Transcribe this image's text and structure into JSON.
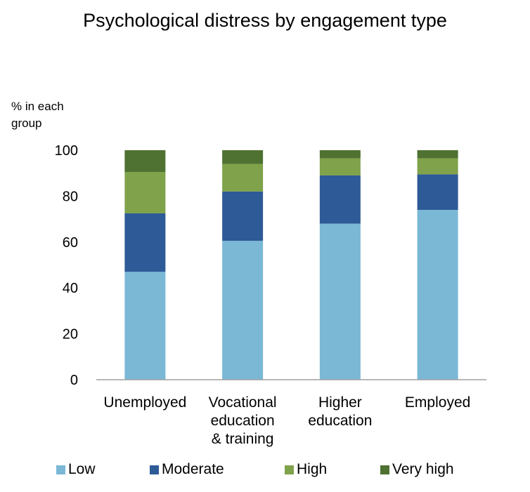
{
  "chart_data": {
    "type": "bar",
    "stacked": true,
    "title": "Psychological distress by engagement type",
    "ylabel": "% in each\ngroup",
    "xlabel": "",
    "ylim": [
      0,
      100
    ],
    "yticks": [
      0,
      20,
      40,
      60,
      80,
      100
    ],
    "grid": false,
    "legend_position": "bottom",
    "categories": [
      "Unemployed",
      "Vocational\neducation\n& training",
      "Higher\neducation",
      "Employed"
    ],
    "series": [
      {
        "name": "Low",
        "color": "#7ab8d6",
        "values": [
          47,
          60.5,
          68,
          74
        ]
      },
      {
        "name": "Moderate",
        "color": "#2e5a97",
        "values": [
          25.5,
          21.5,
          21,
          15.5
        ]
      },
      {
        "name": "High",
        "color": "#7fa24a",
        "values": [
          18,
          12,
          7.5,
          7
        ]
      },
      {
        "name": "Very high",
        "color": "#4f7132",
        "values": [
          9.5,
          6,
          3.5,
          3.5
        ]
      }
    ]
  }
}
